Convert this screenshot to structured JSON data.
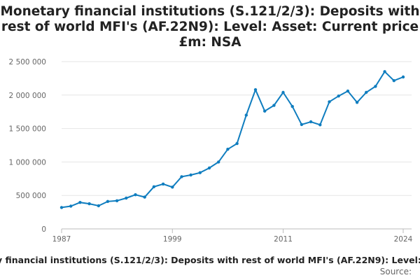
{
  "chart_data": {
    "type": "line",
    "title": "Monetary financial institutions (S.121/2/3): Deposits with rest of world MFI's (AF.22N9): Level: Asset: Current price £m: NSA",
    "xlabel": "",
    "ylabel": "",
    "x": [
      1987,
      1988,
      1989,
      1990,
      1991,
      1992,
      1993,
      1994,
      1995,
      1996,
      1997,
      1998,
      1999,
      2000,
      2001,
      2002,
      2003,
      2004,
      2005,
      2006,
      2007,
      2008,
      2009,
      2010,
      2011,
      2012,
      2013,
      2014,
      2015,
      2016,
      2017,
      2018,
      2019,
      2020,
      2021,
      2022,
      2023,
      2024
    ],
    "series": [
      {
        "name": "Monetary financial institutions (S.121/2/3): Deposits with rest of world MFI's (AF.22N9): Level: Asset: Current price £m: NSA",
        "values": [
          320000,
          340000,
          395000,
          375000,
          345000,
          410000,
          420000,
          460000,
          510000,
          475000,
          630000,
          670000,
          625000,
          780000,
          805000,
          840000,
          910000,
          1000000,
          1190000,
          1275000,
          1700000,
          2080000,
          1760000,
          1845000,
          2040000,
          1830000,
          1560000,
          1600000,
          1555000,
          1900000,
          1985000,
          2060000,
          1890000,
          2040000,
          2130000,
          2350000,
          2215000,
          2270000
        ]
      }
    ],
    "xticks": [
      "1987",
      "1999",
      "2011",
      "2024"
    ],
    "yticks": [
      "0",
      "500 000",
      "1 000 000",
      "1 500 000",
      "2 000 000",
      "2 500 000"
    ],
    "ylim": [
      0,
      2500000
    ],
    "xlim": [
      1987,
      2024
    ],
    "grid": "horizontal",
    "legend_position": "bottom",
    "color": "#0f7dbf"
  },
  "source_label": "Source:"
}
